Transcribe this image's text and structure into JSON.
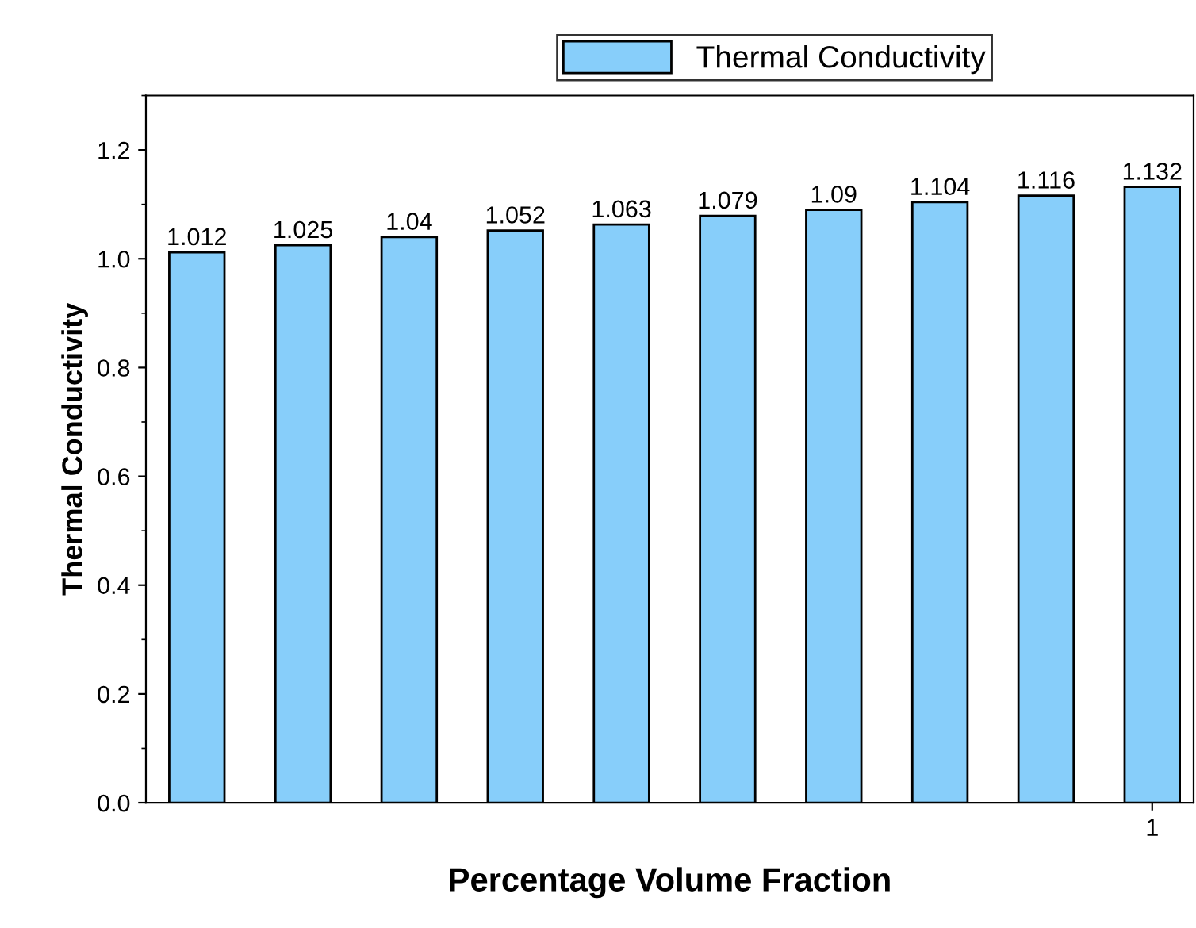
{
  "chart_data": {
    "type": "bar",
    "xlabel": "Percentage Volume Fraction",
    "ylabel": "Thermal Conductivity",
    "categories": [
      null,
      null,
      null,
      null,
      null,
      null,
      null,
      null,
      null,
      "1"
    ],
    "series": [
      {
        "name": "Thermal Conductivity",
        "color": "#87cefa",
        "values": [
          1.012,
          1.025,
          1.04,
          1.052,
          1.063,
          1.079,
          1.09,
          1.104,
          1.116,
          1.132
        ]
      }
    ],
    "data_labels": true,
    "ylim": [
      0.0,
      1.3
    ],
    "yticks": [
      {
        "value": 0.0,
        "label": "0.0"
      },
      {
        "value": 0.2,
        "label": "0.2"
      },
      {
        "value": 0.4,
        "label": "0.4"
      },
      {
        "value": 0.6,
        "label": "0.6"
      },
      {
        "value": 0.8,
        "label": "0.8"
      },
      {
        "value": 1.0,
        "label": "1.0"
      },
      {
        "value": 1.2,
        "label": "1.2"
      }
    ],
    "legend": "top",
    "grid": false
  }
}
